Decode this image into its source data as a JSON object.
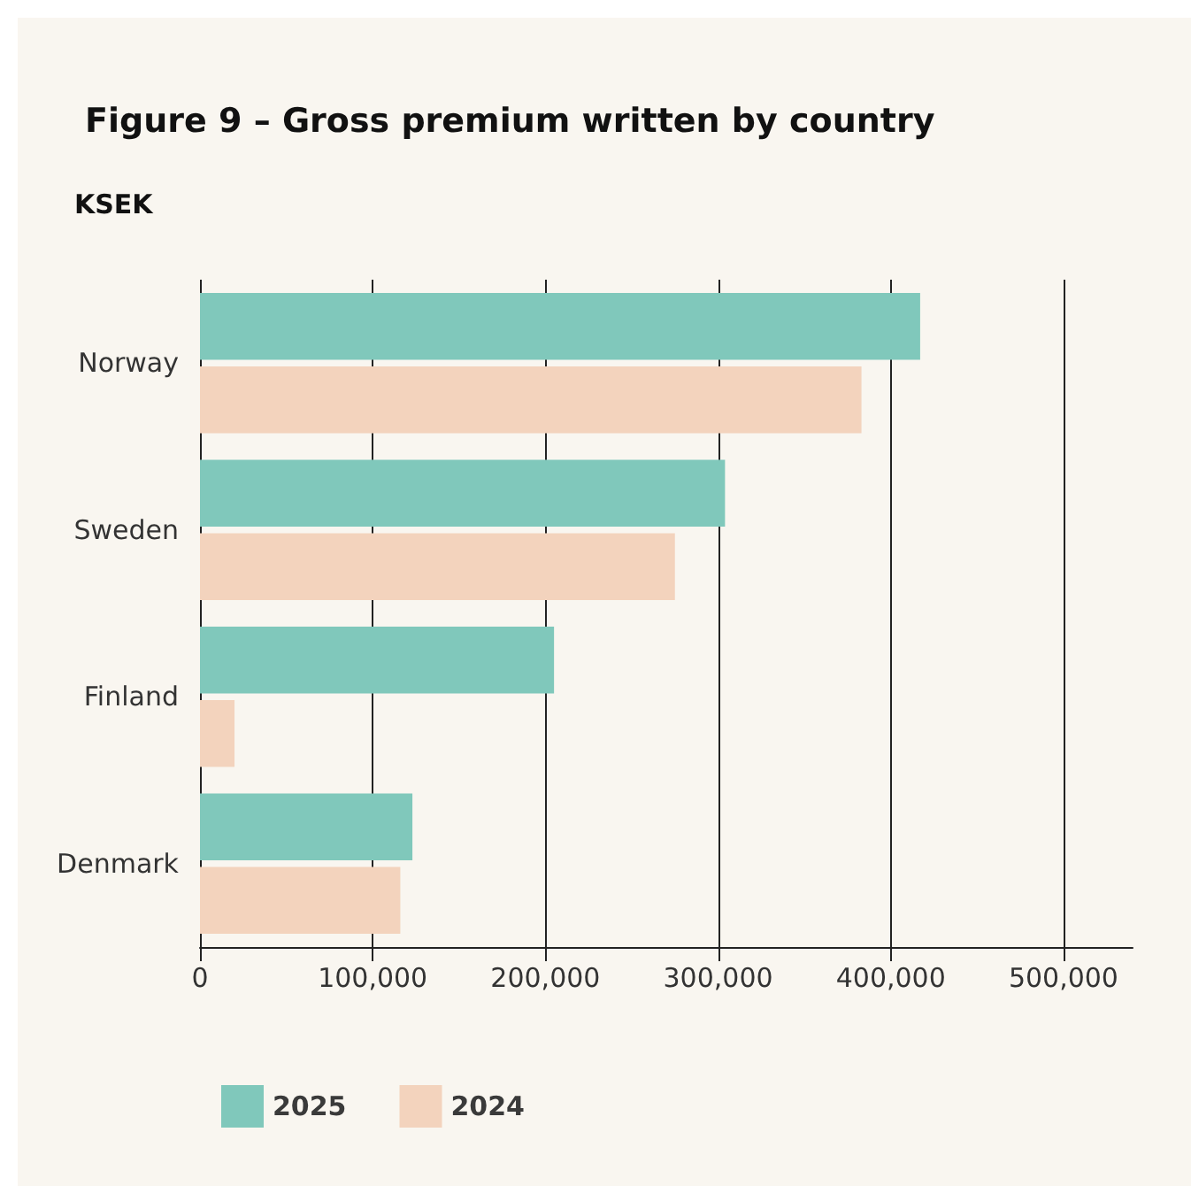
{
  "chart_data": {
    "type": "bar",
    "orientation": "horizontal",
    "title": "Figure 9 – Gross premium written by country",
    "xlabel": "KSEK",
    "categories": [
      "Norway",
      "Sweden",
      "Finland",
      "Denmark"
    ],
    "series": [
      {
        "name": "2025",
        "color": "#80c8bb",
        "values": [
          417000,
          304000,
          205000,
          123000
        ]
      },
      {
        "name": "2024",
        "color": "#f3d3bd",
        "values": [
          383000,
          275000,
          20000,
          116000
        ]
      }
    ],
    "xlim": [
      0,
      540000
    ],
    "xticks": [
      {
        "value": 0,
        "label": "0"
      },
      {
        "value": 100000,
        "label": "100,000"
      },
      {
        "value": 200000,
        "label": "200,000"
      },
      {
        "value": 300000,
        "label": "300,000"
      },
      {
        "value": 400000,
        "label": "400,000"
      },
      {
        "value": 500000,
        "label": "500,000"
      }
    ],
    "grid": "x",
    "legend": "bottom left"
  }
}
